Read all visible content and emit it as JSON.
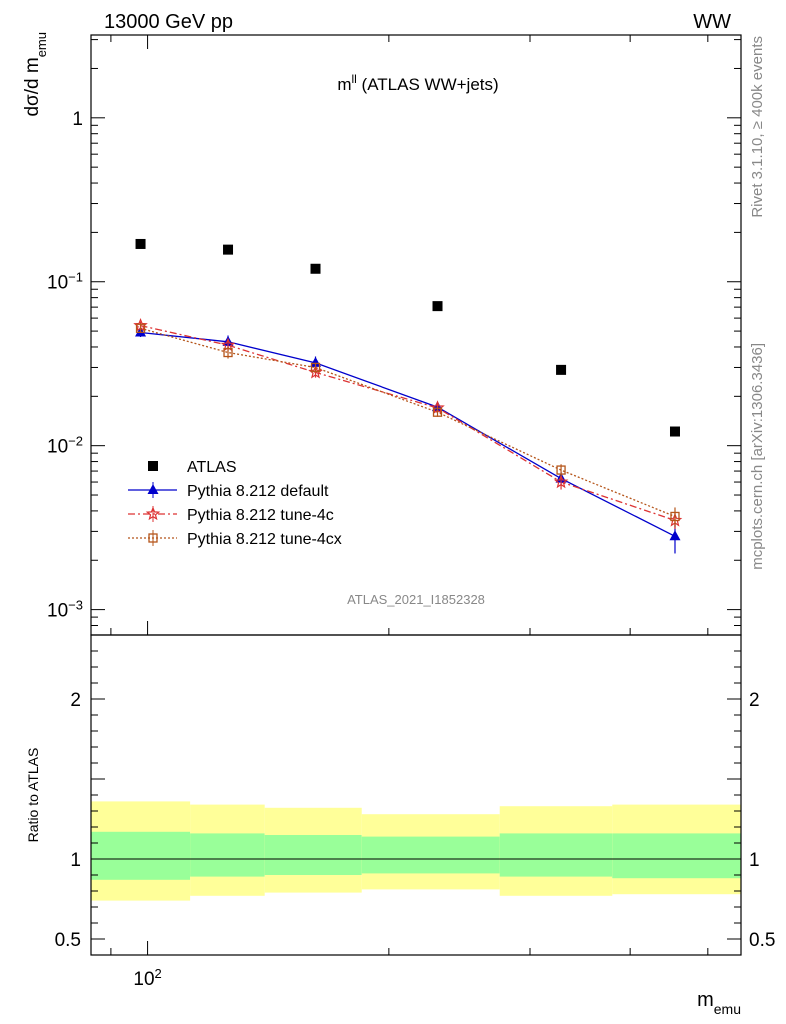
{
  "header": {
    "left": "13000 GeV pp",
    "right": "WW"
  },
  "side_labels": {
    "rivet": "Rivet 3.1.10, ≥ 400k events",
    "mcplots": "mcplots.cern.ch [arXiv:1306.3436]"
  },
  "chart_data": {
    "type": "scatter",
    "title_main": "m",
    "title_sup": "ll",
    "title_rest": " (ATLAS WW+jets)",
    "watermark": "ATLAS_2021_I1852328",
    "ylabel_main": "dσ/d m",
    "ylabel_sub": "emu",
    "xlabel_main": "m",
    "xlabel_sub": "emu",
    "ratio_ylabel": "Ratio to ATLAS",
    "x_scale": "log",
    "y_scale": "log",
    "xlim": [
      85,
      550
    ],
    "ylim": [
      0.0007,
      3.2
    ],
    "ratio_ylim": [
      0.4,
      2.4
    ],
    "y_tick_labels": [
      {
        "value": 1,
        "label": "1"
      },
      {
        "value": 0.1,
        "base": "10",
        "exp": "−1"
      },
      {
        "value": 0.01,
        "base": "10",
        "exp": "−2"
      },
      {
        "value": 0.001,
        "base": "10",
        "exp": "−3"
      }
    ],
    "x_tick_labels": [
      {
        "value": 100,
        "base": "10",
        "exp": "2"
      }
    ],
    "ratio_tick_labels": [
      {
        "value": 2,
        "label": "2"
      },
      {
        "value": 1,
        "label": "1"
      },
      {
        "value": 0.5,
        "label": "0.5"
      }
    ],
    "bins": [
      85,
      113,
      140,
      185,
      275,
      380,
      550
    ],
    "series": [
      {
        "name": "ATLAS",
        "marker": "square",
        "color": "#000000",
        "x": [
          98,
          126,
          162,
          230,
          328,
          455
        ],
        "y": [
          0.17,
          0.157,
          0.12,
          0.071,
          0.029,
          0.0122
        ]
      },
      {
        "name": "Pythia 8.212 default",
        "marker": "triangle",
        "color": "#0000cc",
        "line": "solid",
        "x": [
          98,
          126,
          162,
          230,
          328,
          455
        ],
        "y": [
          0.049,
          0.043,
          0.032,
          0.0172,
          0.0063,
          0.0028
        ],
        "err": [
          0.003,
          0.004,
          0.003,
          0.0012,
          0.0006,
          0.0006
        ]
      },
      {
        "name": "Pythia 8.212 tune-4c",
        "marker": "star",
        "color": "#dd3333",
        "line": "dashdot",
        "x": [
          98,
          126,
          162,
          230,
          328,
          455
        ],
        "y": [
          0.054,
          0.041,
          0.028,
          0.017,
          0.006,
          0.0035
        ],
        "err": [
          0.003,
          0.003,
          0.002,
          0.0012,
          0.0006,
          0.0004
        ]
      },
      {
        "name": "Pythia 8.212 tune-4cx",
        "marker": "open-square",
        "color": "#b5551a",
        "line": "dotted",
        "x": [
          98,
          126,
          162,
          230,
          328,
          455
        ],
        "y": [
          0.052,
          0.037,
          0.03,
          0.016,
          0.0071,
          0.0037
        ],
        "err": [
          0.003,
          0.003,
          0.002,
          0.001,
          0.0006,
          0.0005
        ]
      }
    ],
    "ratio_bands": {
      "outer_color": "#ffff99",
      "inner_color": "#99ff99",
      "outer_lo": [
        0.74,
        0.77,
        0.79,
        0.81,
        0.77,
        0.78
      ],
      "outer_hi": [
        1.36,
        1.34,
        1.32,
        1.28,
        1.33,
        1.34
      ],
      "inner_lo": [
        0.87,
        0.89,
        0.9,
        0.91,
        0.89,
        0.88
      ],
      "inner_hi": [
        1.17,
        1.16,
        1.15,
        1.14,
        1.16,
        1.16
      ]
    },
    "ratio_reference": 1
  }
}
